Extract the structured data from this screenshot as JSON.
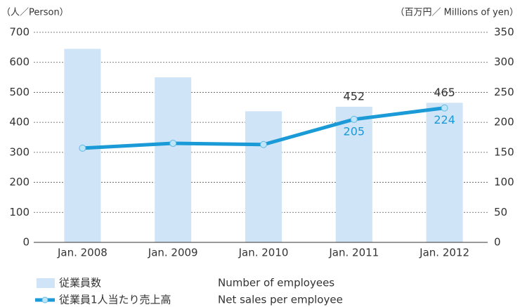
{
  "chart_data": {
    "type": "bar+line",
    "y_axis_label": "（人／Person）",
    "y2_axis_label": "（百万円／ Millions of yen）",
    "categories": [
      "Jan. 2008",
      "Jan. 2009",
      "Jan. 2010",
      "Jan. 2011",
      "Jan. 2012"
    ],
    "series": [
      {
        "name": "従業員数",
        "name_en": "Number of employees",
        "type": "bar",
        "axis": "y",
        "color": "#cfe4f6",
        "label_color": "#333333",
        "values": [
          645,
          550,
          437,
          452,
          465
        ],
        "show_labels": [
          false,
          false,
          false,
          true,
          true
        ]
      },
      {
        "name": "従業員1人当たり売上高",
        "name_en": "Net sales per employee",
        "type": "line",
        "axis": "y2",
        "color": "#1a9ad6",
        "label_color": "#1a9ad6",
        "values": [
          157,
          165,
          163,
          205,
          224
        ],
        "show_labels": [
          false,
          false,
          false,
          true,
          true
        ]
      }
    ],
    "ylim": [
      0,
      700
    ],
    "yticks": [
      0,
      100,
      200,
      300,
      400,
      500,
      600,
      700
    ],
    "y2lim": [
      0,
      350
    ],
    "y2ticks": [
      0,
      50,
      100,
      150,
      200,
      250,
      300,
      350
    ],
    "grid": true
  }
}
